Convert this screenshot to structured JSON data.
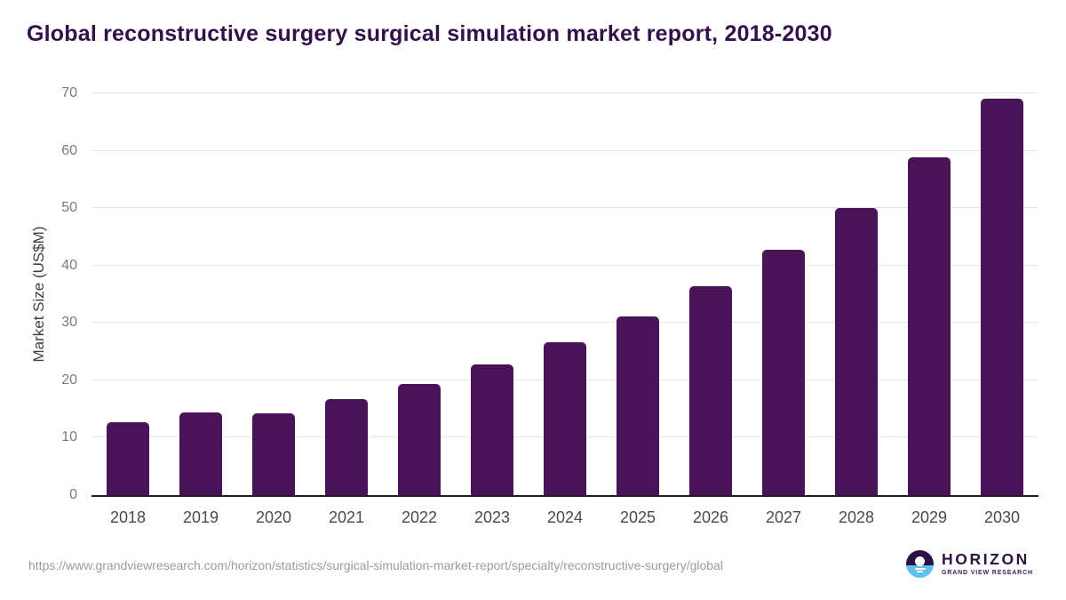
{
  "page": {
    "title": "Global reconstructive surgery surgical simulation market report, 2018-2030"
  },
  "chart_data": {
    "type": "bar",
    "title": "Global reconstructive surgery surgical simulation market report, 2018-2030",
    "categories": [
      "2018",
      "2019",
      "2020",
      "2021",
      "2022",
      "2023",
      "2024",
      "2025",
      "2026",
      "2027",
      "2028",
      "2029",
      "2030"
    ],
    "values": [
      12.7,
      14.4,
      14.2,
      16.7,
      19.4,
      22.8,
      26.6,
      31.1,
      36.4,
      42.7,
      50.0,
      58.8,
      69.0
    ],
    "series_name": "Market Size",
    "xlabel": "",
    "ylabel": "Market Size (US$M)",
    "ylim": [
      0,
      70
    ],
    "yticks": [
      0,
      10,
      20,
      30,
      40,
      50,
      60,
      70
    ],
    "grid": "horizontal-only",
    "legend": "none",
    "bar_corner": "rounded-top"
  },
  "footer": {
    "source_url": "https://www.grandviewresearch.com/horizon/statistics/surgical-simulation-market-report/specialty/reconstructive-surgery/global",
    "logo": {
      "brand": "HORIZON",
      "sub_brand": "GRAND VIEW RESEARCH",
      "icon": "horizon-sunset-icon"
    }
  },
  "colors": {
    "title": "#331049",
    "bar": "#481357",
    "gridline": "#e6e6e6",
    "axis_line": "#1f1f1f",
    "y_tick_label": "#7a7a7a",
    "x_tick_label": "#4a4a4a",
    "axis_title": "#3f3f3f",
    "url_text": "#9b9b9b",
    "logo_purple": "#2d1145",
    "logo_blue": "#5ec1ef",
    "background": "#ffffff"
  }
}
